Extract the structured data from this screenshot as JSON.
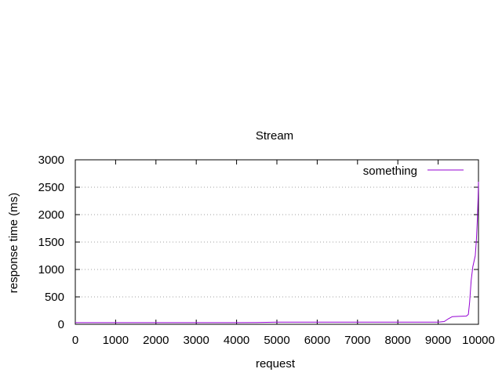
{
  "chart_data": {
    "type": "line",
    "title": "Stream",
    "xlabel": "request",
    "ylabel": "response time (ms)",
    "xlim": [
      0,
      10000
    ],
    "ylim": [
      0,
      3000
    ],
    "xticks": [
      0,
      1000,
      2000,
      3000,
      4000,
      5000,
      6000,
      7000,
      8000,
      9000,
      10000
    ],
    "yticks": [
      0,
      500,
      1000,
      1500,
      2000,
      2500,
      3000
    ],
    "grid": "horizontal dotted",
    "legend_position": "top-right",
    "series": [
      {
        "name": "something",
        "color": "#9400d3",
        "points": [
          [
            0,
            30
          ],
          [
            1000,
            30
          ],
          [
            2000,
            30
          ],
          [
            3000,
            30
          ],
          [
            4000,
            30
          ],
          [
            4500,
            32
          ],
          [
            5000,
            40
          ],
          [
            6000,
            40
          ],
          [
            7000,
            40
          ],
          [
            8000,
            40
          ],
          [
            9000,
            40
          ],
          [
            9150,
            50
          ],
          [
            9250,
            100
          ],
          [
            9350,
            140
          ],
          [
            9500,
            145
          ],
          [
            9700,
            150
          ],
          [
            9750,
            180
          ],
          [
            9780,
            400
          ],
          [
            9820,
            800
          ],
          [
            9860,
            1050
          ],
          [
            9920,
            1250
          ],
          [
            9950,
            1550
          ],
          [
            9975,
            1950
          ],
          [
            9990,
            2300
          ],
          [
            10000,
            2600
          ]
        ]
      }
    ]
  }
}
